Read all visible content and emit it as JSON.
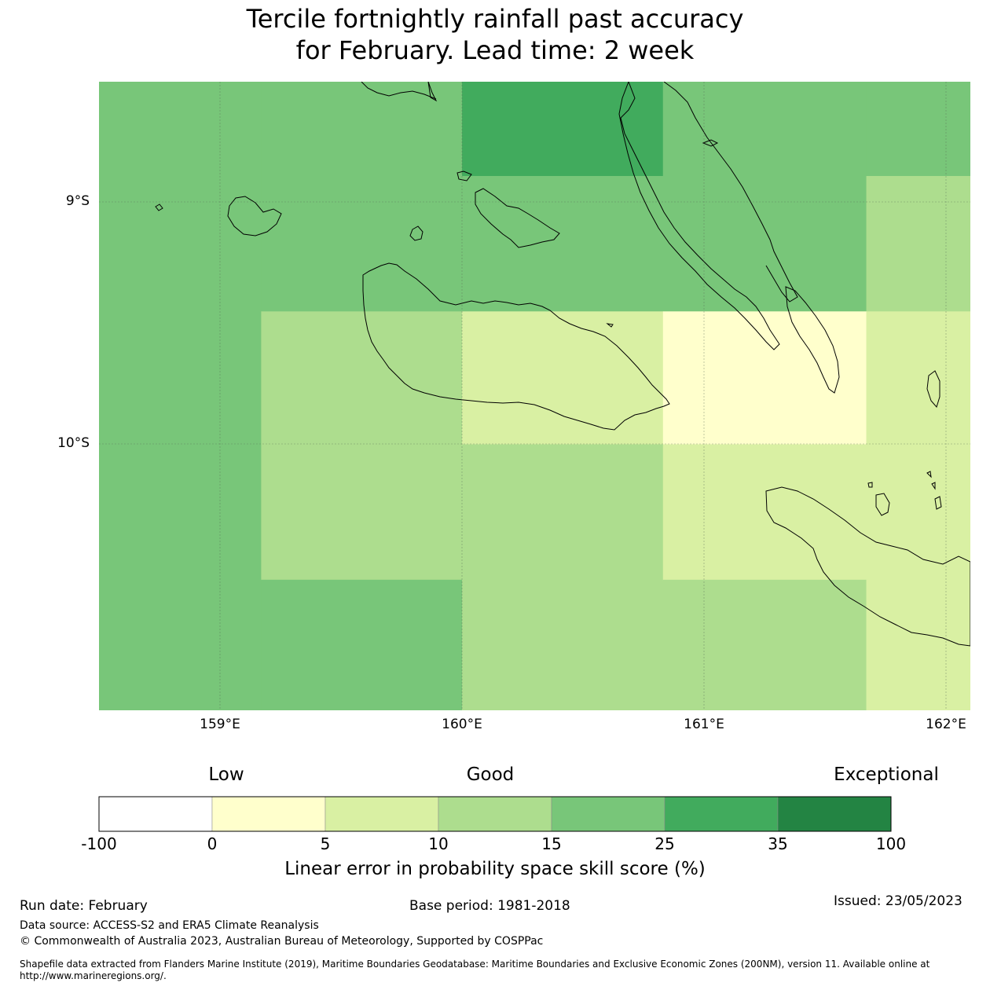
{
  "title": {
    "line1": "Tercile fortnightly rainfall past accuracy",
    "line2": "for February. Lead time: 2 week"
  },
  "map": {
    "lat_labels": [
      "9°S",
      "10°S"
    ],
    "lon_labels": [
      "159°E",
      "160°E",
      "161°E",
      "162°E"
    ],
    "extent": {
      "lon_min": 158.5,
      "lon_max": 162.1,
      "lat_max": -8.5,
      "lat_min": -11.1
    },
    "grid": [
      {
        "lon0": 158.5,
        "lon1": 159.17,
        "lat0": -8.5,
        "lat1": -11.1,
        "value": 20
      },
      {
        "lon0": 159.17,
        "lon1": 160.0,
        "lat0": -8.5,
        "lat1": -9.45,
        "value": 20
      },
      {
        "lon0": 160.0,
        "lon1": 160.83,
        "lat0": -8.5,
        "lat1": -8.89,
        "value": 30
      },
      {
        "lon0": 160.0,
        "lon1": 160.83,
        "lat0": -8.89,
        "lat1": -9.45,
        "value": 20
      },
      {
        "lon0": 160.83,
        "lon1": 161.67,
        "lat0": -8.5,
        "lat1": -9.45,
        "value": 20
      },
      {
        "lon0": 161.67,
        "lon1": 162.1,
        "lat0": -8.5,
        "lat1": -8.89,
        "value": 20
      },
      {
        "lon0": 161.67,
        "lon1": 162.1,
        "lat0": -8.89,
        "lat1": -9.45,
        "value": 12
      },
      {
        "lon0": 159.17,
        "lon1": 160.0,
        "lat0": -9.45,
        "lat1": -10.56,
        "value": 12
      },
      {
        "lon0": 159.17,
        "lon1": 160.0,
        "lat0": -10.56,
        "lat1": -11.1,
        "value": 20
      },
      {
        "lon0": 160.0,
        "lon1": 160.83,
        "lat0": -9.45,
        "lat1": -10.0,
        "value": 7
      },
      {
        "lon0": 160.0,
        "lon1": 160.83,
        "lat0": -10.0,
        "lat1": -11.1,
        "value": 12
      },
      {
        "lon0": 160.83,
        "lon1": 161.67,
        "lat0": -9.45,
        "lat1": -10.0,
        "value": 2
      },
      {
        "lon0": 160.83,
        "lon1": 161.67,
        "lat0": -10.0,
        "lat1": -10.56,
        "value": 7
      },
      {
        "lon0": 160.83,
        "lon1": 161.67,
        "lat0": -10.56,
        "lat1": -11.1,
        "value": 12
      },
      {
        "lon0": 161.67,
        "lon1": 162.1,
        "lat0": -9.45,
        "lat1": -11.1,
        "value": 7
      }
    ]
  },
  "colorbar": {
    "headings": [
      "Low",
      "Good",
      "Exceptional"
    ],
    "ticks": [
      "-100",
      "0",
      "5",
      "10",
      "15",
      "25",
      "35",
      "100"
    ],
    "colors": [
      "#ffffff",
      "#ffffcc",
      "#d9f0a3",
      "#addd8e",
      "#78c679",
      "#41ab5d",
      "#238443"
    ],
    "label": "Linear error in probability space skill score (%)"
  },
  "footer": {
    "run_date": "Run date: February",
    "base_period": "Base period: 1981-2018",
    "issued": "Issued: 23/05/2023",
    "data_source": "Data source: ACCESS-S2 and ERA5 Climate Reanalysis",
    "copyright": "© Commonwealth of Australia 2023, Australian Bureau of Meteorology, Supported by COSPPac",
    "shapefile": "Shapefile data extracted from Flanders Marine Institute (2019), Maritime Boundaries Geodatabase: Maritime Boundaries and Exclusive Economic Zones (200NM), version 11. Available online at http://www.marineregions.org/."
  }
}
